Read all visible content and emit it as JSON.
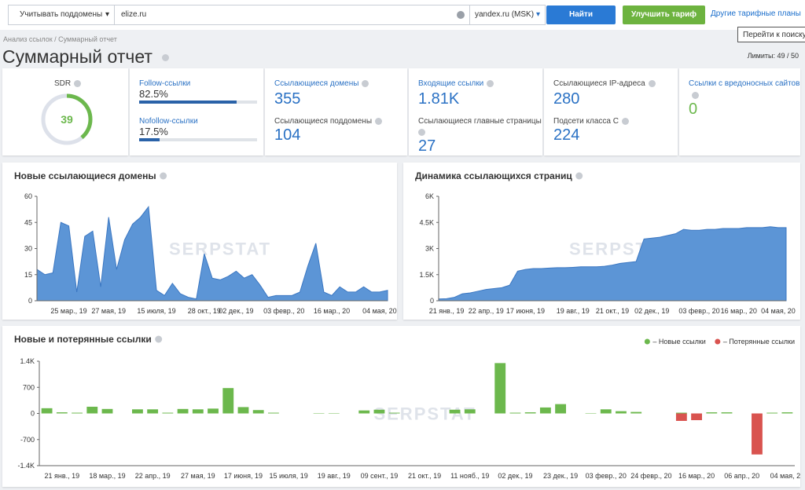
{
  "toolbar": {
    "subdomains": "Учитывать поддомены",
    "query": "elize.ru",
    "engine": "yandex.ru (MSK)",
    "search": "Найти",
    "upgrade": "Улучшить тариф",
    "plans": "Другие тарифные планы",
    "tooltip": "Перейти к поиску"
  },
  "breadcrumb": "Анализ ссылок / Суммарный отчет",
  "header": {
    "title": "Суммарный отчет",
    "limits": "Лимиты: 49 / 50"
  },
  "metrics": {
    "sdr": {
      "label": "SDR",
      "value": 39
    },
    "follow": {
      "label": "Follow-ссылки",
      "value": 82.5,
      "value_label": "82.5%"
    },
    "nofollow": {
      "label": "Nofollow-ссылки",
      "value": 17.5,
      "value_label": "17.5%"
    },
    "ref_domains": {
      "label": "Ссылающиеся домены",
      "value": 355
    },
    "ref_subdomains": {
      "label": "Ссылающиеся поддомены",
      "value": 104
    },
    "backlinks": {
      "label": "Входящие ссылки",
      "value": "1.81K"
    },
    "main_pages": {
      "label": "Ссылающиеся главные страницы",
      "value": 27
    },
    "ips": {
      "label": "Ссылающиеся IP-адреса",
      "value": 280
    },
    "subnets": {
      "label": "Подсети класса C",
      "value": 224
    },
    "malicious": {
      "label": "Ссылки с вредоносных сайтов",
      "value": 0
    }
  },
  "watermark": "SERPSTAT",
  "chart_data": [
    {
      "type": "area",
      "title": "Новые ссылающиеся домены",
      "color": "#5c95d6",
      "categories": [
        null,
        null,
        null,
        null,
        "25 мар., 19",
        null,
        null,
        null,
        null,
        "27 мая, 19",
        null,
        null,
        null,
        null,
        null,
        "15 июля, 19",
        null,
        null,
        null,
        null,
        null,
        "28 окт., 19",
        null,
        null,
        null,
        "02 дек., 19",
        null,
        null,
        null,
        null,
        null,
        "03 февр., 20",
        null,
        null,
        null,
        null,
        null,
        "16 мар., 20",
        null,
        null,
        null,
        null,
        null,
        "04 мая, 20",
        null
      ],
      "values": [
        18,
        15,
        16,
        45,
        43,
        5,
        37,
        40,
        8,
        48,
        18,
        35,
        44,
        48,
        54,
        6,
        3,
        10,
        4,
        2,
        1,
        27,
        13,
        12,
        14,
        17,
        13,
        15,
        9,
        2,
        3,
        3,
        3,
        5,
        20,
        33,
        5,
        3,
        8,
        5,
        5,
        8,
        5,
        5,
        6
      ],
      "ylim": [
        0,
        60
      ],
      "yticks": [
        0,
        15,
        30,
        45,
        60
      ]
    },
    {
      "type": "area",
      "title": "Динамика ссылающихся страниц",
      "color": "#5c95d6",
      "categories": [
        null,
        "21 янв., 19",
        null,
        null,
        null,
        null,
        "22 апр., 19",
        null,
        null,
        null,
        null,
        "17 июня, 19",
        null,
        null,
        null,
        null,
        null,
        "19 авг., 19",
        null,
        null,
        null,
        null,
        "21 окт., 19",
        null,
        null,
        null,
        null,
        "02 дек., 19",
        null,
        null,
        null,
        null,
        null,
        "03 февр., 20",
        null,
        null,
        null,
        null,
        "16 мар., 20",
        null,
        null,
        null,
        null,
        "04 мая, 20",
        null
      ],
      "values": [
        100,
        120,
        200,
        400,
        450,
        550,
        650,
        700,
        750,
        900,
        1700,
        1800,
        1850,
        1850,
        1880,
        1900,
        1900,
        1920,
        1950,
        1950,
        1950,
        1980,
        2050,
        2150,
        2200,
        2250,
        3550,
        3600,
        3650,
        3750,
        3850,
        4100,
        4050,
        4050,
        4100,
        4100,
        4150,
        4150,
        4150,
        4200,
        4200,
        4200,
        4250,
        4200,
        4200
      ],
      "ylim": [
        0,
        6000
      ],
      "yticks": [
        0,
        {
          "value": 1500,
          "label": "1.5K"
        },
        {
          "value": 3000,
          "label": "3K"
        },
        {
          "value": 4500,
          "label": "4.5K"
        },
        {
          "value": 6000,
          "label": "6K"
        }
      ]
    },
    {
      "type": "bar",
      "title": "Новые и потерянные ссылки",
      "legend": "top-right",
      "categories": [
        null,
        "21 янв., 19",
        null,
        null,
        "18 мар., 19",
        null,
        null,
        "22 апр., 19",
        null,
        null,
        "27 мая, 19",
        null,
        null,
        "17 июня, 19",
        null,
        null,
        "15 июля, 19",
        null,
        null,
        "19 авг., 19",
        null,
        null,
        "09 сент., 19",
        null,
        null,
        "21 окт., 19",
        null,
        null,
        "11 нояб., 19",
        null,
        null,
        "02 дек., 19",
        null,
        null,
        "23 дек., 19",
        null,
        null,
        "03 февр., 20",
        null,
        null,
        "24 февр., 20",
        null,
        null,
        "16 мар., 20",
        null,
        null,
        "06 апр., 20",
        null,
        null,
        "04 мая, 20"
      ],
      "series": [
        {
          "name": "– Новые ссылки",
          "color": "#6cb84d",
          "values": [
            140,
            30,
            20,
            180,
            120,
            0,
            110,
            110,
            20,
            120,
            110,
            130,
            680,
            170,
            90,
            20,
            0,
            0,
            10,
            10,
            0,
            80,
            100,
            20,
            0,
            0,
            0,
            100,
            110,
            0,
            1350,
            20,
            30,
            160,
            250,
            0,
            10,
            110,
            60,
            40,
            0,
            0,
            20,
            0,
            30,
            30,
            0,
            0,
            20,
            30
          ]
        },
        {
          "name": "– Потерянные ссылки",
          "color": "#d9534f",
          "values": [
            0,
            0,
            0,
            0,
            0,
            0,
            0,
            0,
            0,
            0,
            0,
            0,
            0,
            0,
            0,
            0,
            0,
            0,
            0,
            0,
            0,
            0,
            0,
            0,
            0,
            0,
            0,
            0,
            0,
            0,
            0,
            0,
            0,
            0,
            0,
            0,
            0,
            0,
            0,
            0,
            0,
            0,
            -200,
            -180,
            0,
            0,
            0,
            -1100,
            0,
            0
          ]
        }
      ],
      "ylim": [
        -1400,
        1400
      ],
      "yticks": [
        {
          "value": -1400,
          "label": "-1.4K"
        },
        -700,
        0,
        700,
        {
          "value": 1400,
          "label": "1.4K"
        }
      ]
    }
  ]
}
